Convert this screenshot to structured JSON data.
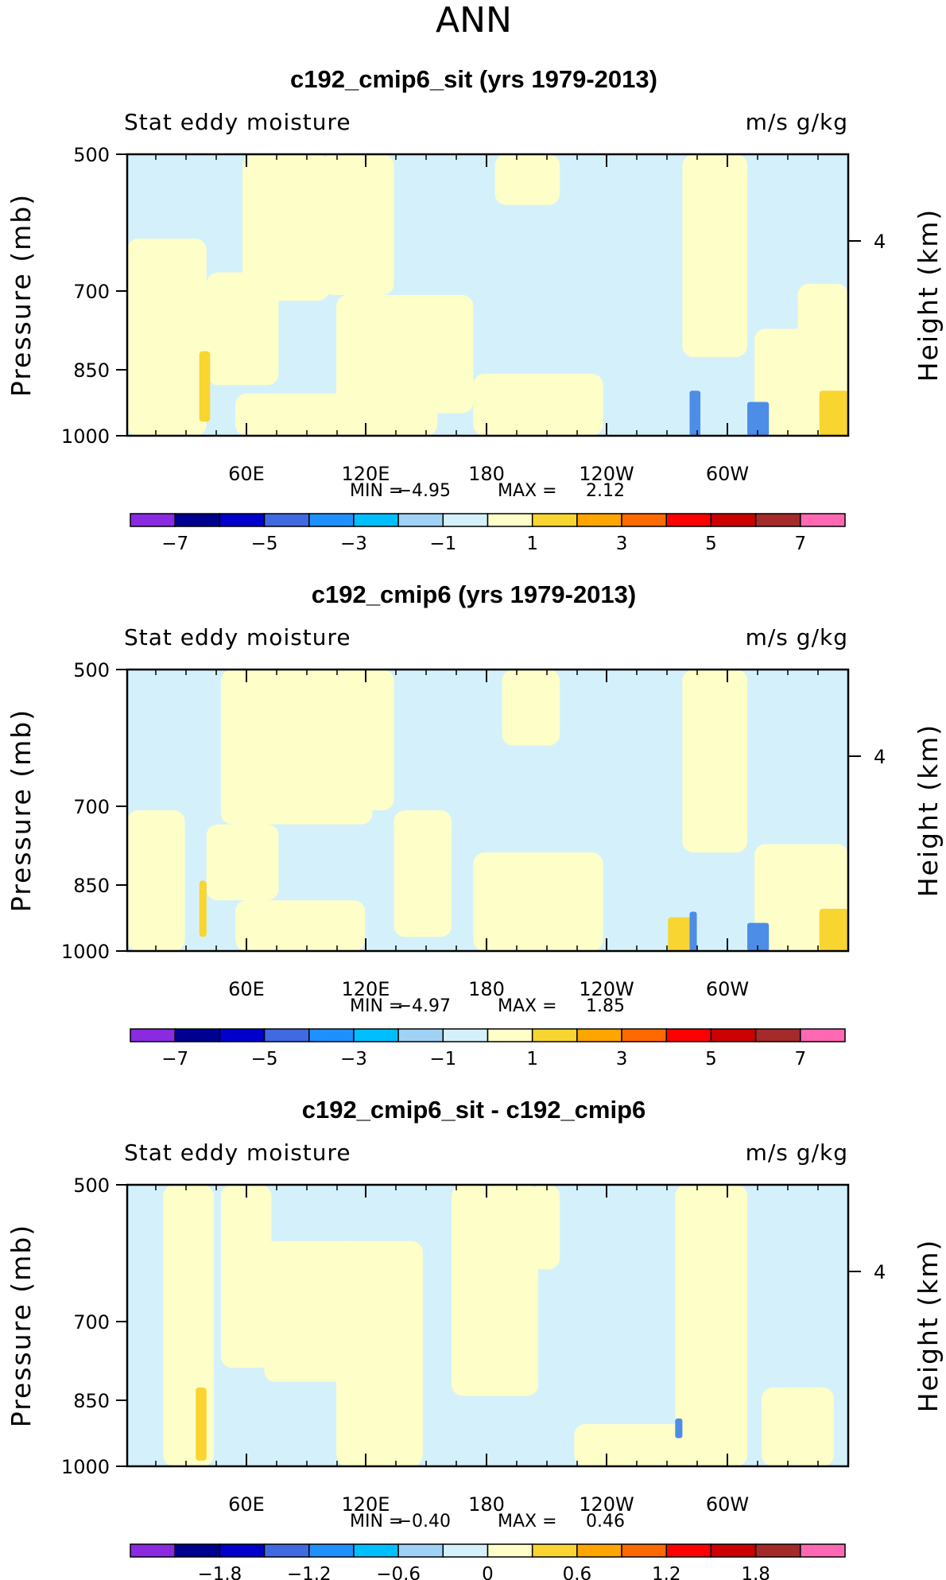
{
  "figure_title": "ANN",
  "colors": {
    "neg_fill": "#d4f1fb",
    "pos_fill": "#fefec8",
    "strong_pos": "#f8d531",
    "strong_neg": "#4d8de8"
  },
  "chart_data": [
    {
      "type": "heatmap",
      "title": "c192_cmip6_sit (yrs 1979-2013)",
      "subtitle_left": "Stat eddy moisture",
      "subtitle_right": "m/s g/kg",
      "ylabel": "Pressure (mb)",
      "ylabel_right": "Height (km)",
      "yticks": [
        "500",
        "700",
        "850",
        "1000"
      ],
      "yticks_right": [
        "4"
      ],
      "xticks": [
        "60E",
        "120E",
        "180",
        "120W",
        "60W"
      ],
      "stats": {
        "min_label": "MIN =",
        "min": "-4.95",
        "max_label": "MAX =",
        "max": "2.12"
      },
      "colorbar": {
        "colors": [
          "#8a2be2",
          "#000090",
          "#0000cd",
          "#4169e1",
          "#1e90ff",
          "#00bfff",
          "#a0d2f5",
          "#d4f1fb",
          "#fefec8",
          "#f8d531",
          "#ffa500",
          "#ff6a00",
          "#ff0000",
          "#cd0000",
          "#a52a2a",
          "#ff69b4"
        ],
        "labels": [
          "-7",
          "-5",
          "-3",
          "-1",
          "1",
          "3",
          "5",
          "7"
        ]
      },
      "pos_regions": [
        [
          0,
          0.3,
          0.11,
          1
        ],
        [
          0.11,
          0.42,
          0.21,
          0.82
        ],
        [
          0.16,
          0,
          0.28,
          0.52
        ],
        [
          0.15,
          0.85,
          0.33,
          1
        ],
        [
          0.27,
          0,
          0.37,
          0.5
        ],
        [
          0.29,
          0.5,
          0.43,
          1
        ],
        [
          0.37,
          0.5,
          0.48,
          0.92
        ],
        [
          0.48,
          0.78,
          0.66,
          1
        ],
        [
          0.51,
          0,
          0.6,
          0.18
        ],
        [
          0.77,
          0,
          0.86,
          0.72
        ],
        [
          0.87,
          0.62,
          1,
          1
        ],
        [
          0.93,
          0.46,
          1,
          0.72
        ]
      ],
      "strong_regions": [
        [
          0.96,
          0.84,
          1,
          1
        ],
        [
          0.1,
          0.7,
          0.115,
          0.95
        ]
      ],
      "neg_strong_regions": [
        [
          0.78,
          0.84,
          0.795,
          1
        ],
        [
          0.86,
          0.88,
          0.89,
          1
        ]
      ]
    },
    {
      "type": "heatmap",
      "title": "c192_cmip6 (yrs 1979-2013)",
      "subtitle_left": "Stat eddy moisture",
      "subtitle_right": "m/s g/kg",
      "ylabel": "Pressure (mb)",
      "ylabel_right": "Height (km)",
      "yticks": [
        "500",
        "700",
        "850",
        "1000"
      ],
      "yticks_right": [
        "4"
      ],
      "xticks": [
        "60E",
        "120E",
        "180",
        "120W",
        "60W"
      ],
      "stats": {
        "min_label": "MIN =",
        "min": "-4.97",
        "max_label": "MAX =",
        "max": "1.85"
      },
      "colorbar": {
        "colors": [
          "#8a2be2",
          "#000090",
          "#0000cd",
          "#4169e1",
          "#1e90ff",
          "#00bfff",
          "#a0d2f5",
          "#d4f1fb",
          "#fefec8",
          "#f8d531",
          "#ffa500",
          "#ff6a00",
          "#ff0000",
          "#cd0000",
          "#a52a2a",
          "#ff69b4"
        ],
        "labels": [
          "-7",
          "-5",
          "-3",
          "-1",
          "1",
          "3",
          "5",
          "7"
        ]
      },
      "pos_regions": [
        [
          0,
          0.5,
          0.08,
          1
        ],
        [
          0.11,
          0.55,
          0.21,
          0.82
        ],
        [
          0.13,
          0,
          0.34,
          0.55
        ],
        [
          0.15,
          0.82,
          0.33,
          1
        ],
        [
          0.27,
          0,
          0.37,
          0.5
        ],
        [
          0.37,
          0.5,
          0.45,
          0.95
        ],
        [
          0.48,
          0.65,
          0.66,
          1
        ],
        [
          0.52,
          0,
          0.6,
          0.27
        ],
        [
          0.77,
          0,
          0.86,
          0.65
        ],
        [
          0.87,
          0.62,
          1,
          1
        ]
      ],
      "strong_regions": [
        [
          0.96,
          0.85,
          1,
          1
        ],
        [
          0.1,
          0.75,
          0.11,
          0.95
        ],
        [
          0.75,
          0.88,
          0.79,
          1
        ]
      ],
      "neg_strong_regions": [
        [
          0.78,
          0.86,
          0.79,
          1
        ],
        [
          0.86,
          0.9,
          0.89,
          1
        ]
      ]
    },
    {
      "type": "heatmap",
      "title": "c192_cmip6_sit - c192_cmip6",
      "subtitle_left": "Stat eddy moisture",
      "subtitle_right": "m/s g/kg",
      "ylabel": "Pressure (mb)",
      "ylabel_right": "Height (km)",
      "yticks": [
        "500",
        "700",
        "850",
        "1000"
      ],
      "yticks_right": [
        "4"
      ],
      "xticks": [
        "60E",
        "120E",
        "180",
        "120W",
        "60W"
      ],
      "stats": {
        "min_label": "MIN =",
        "min": "-0.40",
        "max_label": "MAX =",
        "max": "0.46"
      },
      "colorbar": {
        "colors": [
          "#8a2be2",
          "#000090",
          "#0000cd",
          "#4169e1",
          "#1e90ff",
          "#00bfff",
          "#a0d2f5",
          "#d4f1fb",
          "#fefec8",
          "#f8d531",
          "#ffa500",
          "#ff6a00",
          "#ff0000",
          "#cd0000",
          "#a52a2a",
          "#ff69b4"
        ],
        "labels": [
          "-1.8",
          "-1.2",
          "-0.6",
          "0",
          "0.6",
          "1.2",
          "1.8"
        ]
      },
      "pos_regions": [
        [
          0.05,
          0,
          0.12,
          1
        ],
        [
          0.13,
          0,
          0.2,
          0.65
        ],
        [
          0.19,
          0.2,
          0.32,
          0.7
        ],
        [
          0.29,
          0.2,
          0.41,
          1
        ],
        [
          0.45,
          0,
          0.57,
          0.75
        ],
        [
          0.56,
          0,
          0.6,
          0.3
        ],
        [
          0.62,
          0.85,
          0.78,
          1
        ],
        [
          0.76,
          0,
          0.86,
          1
        ],
        [
          0.88,
          0.72,
          0.98,
          1
        ]
      ],
      "strong_regions": [
        [
          0.095,
          0.72,
          0.11,
          0.98
        ]
      ],
      "neg_strong_regions": [
        [
          0.76,
          0.83,
          0.77,
          0.9
        ]
      ]
    }
  ]
}
